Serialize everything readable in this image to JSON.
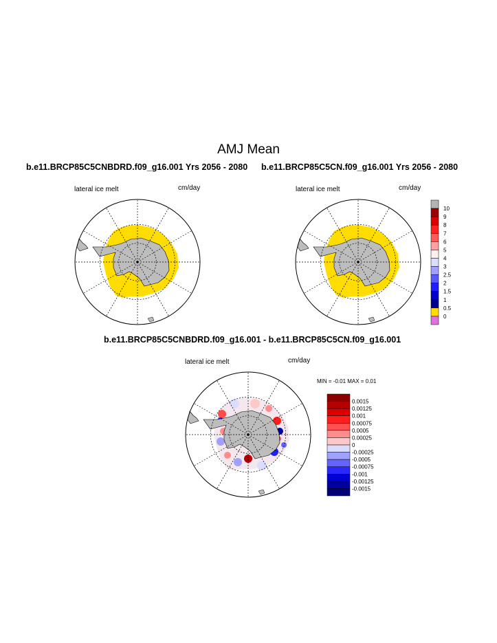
{
  "page_title": "AMJ Mean",
  "colors": {
    "ice": "#ffdd00",
    "land": "#bdbdbd",
    "grid": "#000000"
  },
  "chart_data": [
    {
      "type": "map",
      "title": "b.e11.BRCP85C5CNBDRD.f09_g16.001  Yrs 2056 - 2080",
      "left_label": "lateral ice melt",
      "right_label": "cm/day",
      "fill_category": "0.5"
    },
    {
      "type": "map",
      "title": "b.e11.BRCP85C5CN.f09_g16.001  Yrs 2056 - 2080",
      "left_label": "lateral ice melt",
      "right_label": "cm/day",
      "fill_category": "0.5",
      "colorbar": {
        "labels": [
          "10",
          "9",
          "8",
          "7",
          "6",
          "5",
          "4",
          "3",
          "2.5",
          "2",
          "1.5",
          "1",
          "0.5",
          "0"
        ],
        "colors": [
          "#b4b4b4",
          "#a00000",
          "#dc0000",
          "#ff2020",
          "#ff5a5a",
          "#ffa0a0",
          "#fff0f0",
          "#dcdcff",
          "#a0a0ff",
          "#5a5aff",
          "#1e1eff",
          "#0000c8",
          "#00008c",
          "#ffdd00",
          "#e070e0"
        ]
      }
    },
    {
      "type": "map",
      "title": "b.e11.BRCP85C5CNBDRD.f09_g16.001 - b.e11.BRCP85C5CN.f09_g16.001",
      "left_label": "lateral ice melt",
      "right_label": "cm/day",
      "min_max": "MIN =  -0.01 MAX =   0.01",
      "colorbar": {
        "labels": [
          "0.0015",
          "0.00125",
          "0.001",
          "0.00075",
          "0.0005",
          "0.00025",
          "0",
          "-0.00025",
          "-0.0005",
          "-0.00075",
          "-0.001",
          "-0.00125",
          "-0.0015"
        ],
        "colors": [
          "#8c0000",
          "#b40000",
          "#dc0000",
          "#ff1e1e",
          "#ff5050",
          "#ff8c8c",
          "#ffc8c8",
          "#dcdcff",
          "#a0a0ff",
          "#6464ff",
          "#2828ff",
          "#0000d2",
          "#0000a0",
          "#000078"
        ]
      }
    }
  ]
}
